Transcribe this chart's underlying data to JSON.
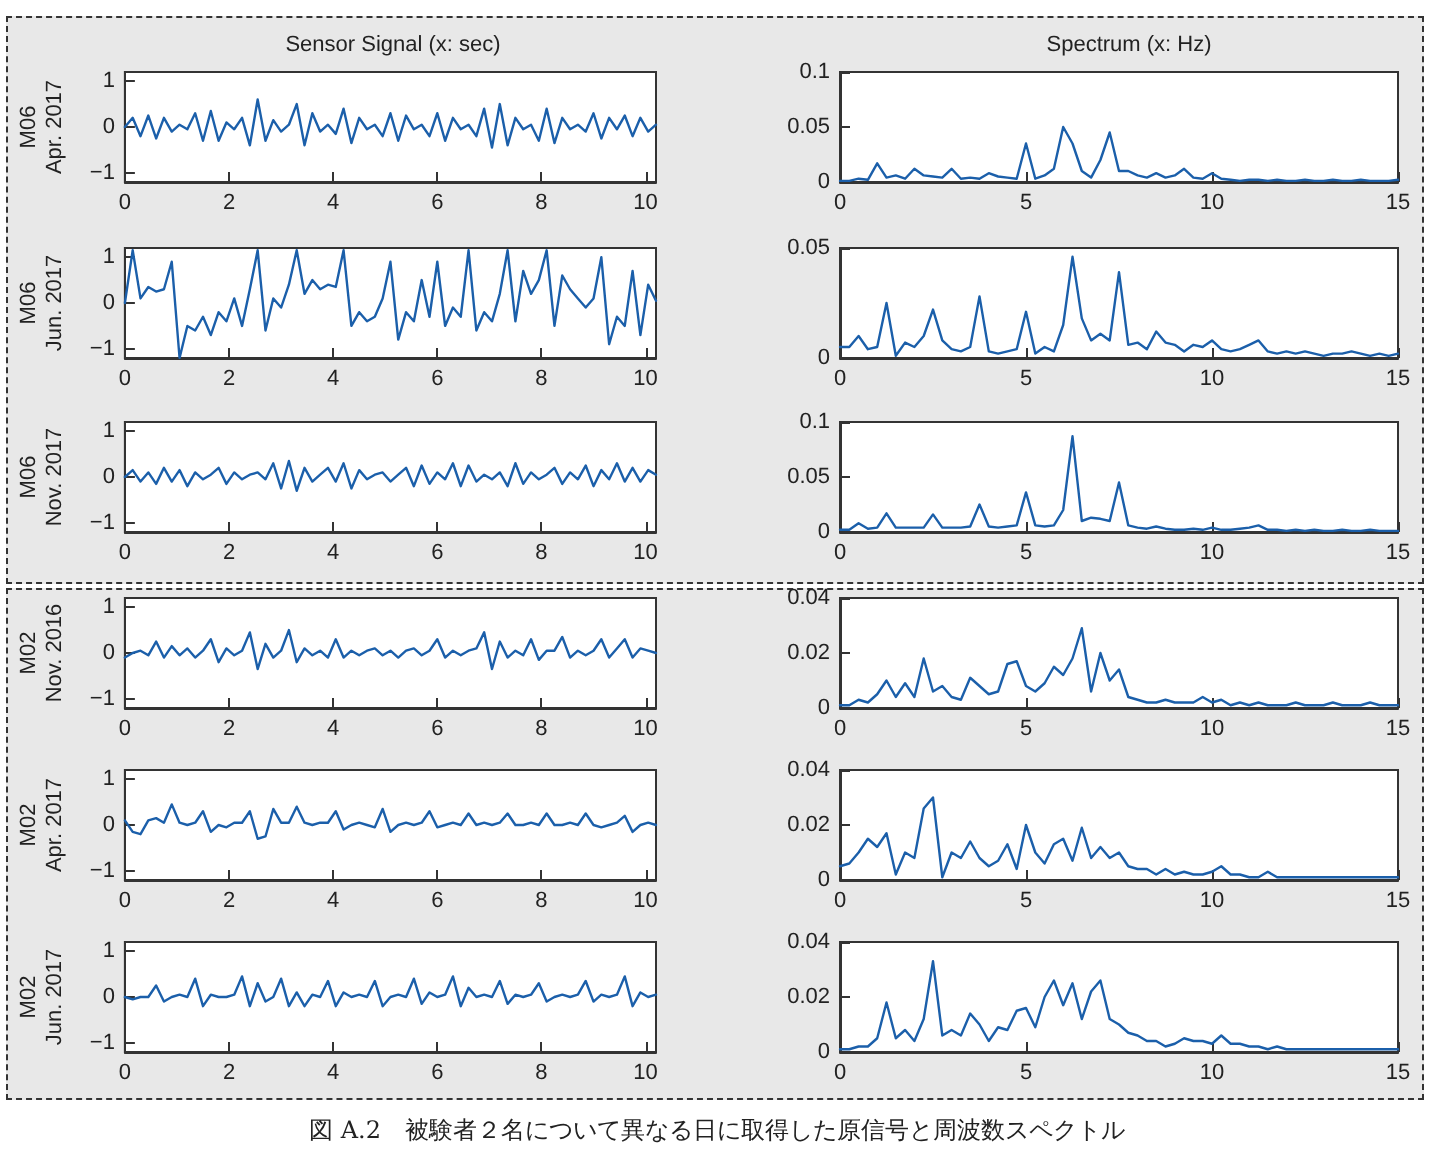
{
  "chart_data": [
    {
      "type": "line",
      "title": "Sensor Signal (x: sec)",
      "ylabel": "M06\nApr. 2017",
      "xlim": [
        0,
        10.2
      ],
      "ylim": [
        -1.2,
        1.2
      ],
      "xticks": [
        0,
        2,
        4,
        6,
        8,
        10
      ],
      "yticks": [
        -1,
        0,
        1
      ],
      "color": "#1b5faa",
      "x": [
        0,
        0.15,
        0.3,
        0.45,
        0.6,
        0.75,
        0.9,
        1.05,
        1.2,
        1.35,
        1.5,
        1.65,
        1.8,
        1.95,
        2.1,
        2.25,
        2.4,
        2.55,
        2.7,
        2.85,
        3,
        3.15,
        3.3,
        3.45,
        3.6,
        3.75,
        3.9,
        4.05,
        4.2,
        4.35,
        4.5,
        4.65,
        4.8,
        4.95,
        5.1,
        5.25,
        5.4,
        5.55,
        5.7,
        5.85,
        6,
        6.15,
        6.3,
        6.45,
        6.6,
        6.75,
        6.9,
        7.05,
        7.2,
        7.35,
        7.5,
        7.65,
        7.8,
        7.95,
        8.1,
        8.25,
        8.4,
        8.55,
        8.7,
        8.85,
        9,
        9.15,
        9.3,
        9.45,
        9.6,
        9.75,
        9.9,
        10.05,
        10.2
      ],
      "values": [
        0,
        0.2,
        -0.2,
        0.25,
        -0.25,
        0.2,
        -0.1,
        0.05,
        -0.05,
        0.3,
        -0.3,
        0.35,
        -0.3,
        0.1,
        -0.05,
        0.2,
        -0.4,
        0.6,
        -0.3,
        0.15,
        -0.1,
        0.05,
        0.5,
        -0.4,
        0.3,
        -0.1,
        0.05,
        -0.15,
        0.4,
        -0.35,
        0.2,
        -0.05,
        0.05,
        -0.2,
        0.3,
        -0.3,
        0.25,
        -0.05,
        0.05,
        -0.2,
        0.3,
        -0.3,
        0.2,
        -0.05,
        0.05,
        -0.2,
        0.4,
        -0.45,
        0.5,
        -0.4,
        0.2,
        -0.05,
        0.05,
        -0.3,
        0.4,
        -0.35,
        0.2,
        -0.05,
        0.05,
        -0.1,
        0.3,
        -0.25,
        0.2,
        -0.05,
        0.25,
        -0.2,
        0.2,
        -0.1,
        0.05
      ]
    },
    {
      "type": "line",
      "title": "Spectrum (x: Hz)",
      "xlim": [
        0,
        15
      ],
      "ylim": [
        0,
        0.1
      ],
      "xticks": [
        0,
        5,
        10,
        15
      ],
      "yticks": [
        0,
        0.05,
        0.1
      ],
      "color": "#1b5faa",
      "x": [
        0,
        0.25,
        0.5,
        0.75,
        1,
        1.25,
        1.5,
        1.75,
        2,
        2.25,
        2.5,
        2.75,
        3,
        3.25,
        3.5,
        3.75,
        4,
        4.25,
        4.5,
        4.75,
        5,
        5.25,
        5.5,
        5.75,
        6,
        6.25,
        6.5,
        6.75,
        7,
        7.25,
        7.5,
        7.75,
        8,
        8.25,
        8.5,
        8.75,
        9,
        9.25,
        9.5,
        9.75,
        10,
        10.25,
        10.5,
        10.75,
        11,
        11.25,
        11.5,
        11.75,
        12,
        12.25,
        12.5,
        12.75,
        13,
        13.25,
        13.5,
        13.75,
        14,
        14.25,
        14.5,
        14.75,
        15
      ],
      "values": [
        0.001,
        0.001,
        0.003,
        0.002,
        0.017,
        0.004,
        0.006,
        0.003,
        0.012,
        0.006,
        0.005,
        0.004,
        0.012,
        0.003,
        0.004,
        0.003,
        0.008,
        0.005,
        0.004,
        0.003,
        0.035,
        0.003,
        0.006,
        0.012,
        0.05,
        0.035,
        0.01,
        0.004,
        0.02,
        0.045,
        0.01,
        0.01,
        0.006,
        0.004,
        0.008,
        0.004,
        0.006,
        0.012,
        0.004,
        0.003,
        0.008,
        0.003,
        0.002,
        0.001,
        0.002,
        0.002,
        0.001,
        0.002,
        0.001,
        0.001,
        0.002,
        0.001,
        0.001,
        0.002,
        0.001,
        0.001,
        0.002,
        0.001,
        0.001,
        0.001,
        0.002
      ]
    },
    {
      "type": "line",
      "ylabel": "M06\nJun. 2017",
      "xlim": [
        0,
        10.2
      ],
      "ylim": [
        -1.2,
        1.2
      ],
      "xticks": [
        0,
        2,
        4,
        6,
        8,
        10
      ],
      "yticks": [
        -1,
        0,
        1
      ],
      "color": "#1b5faa",
      "x": [
        0,
        0.15,
        0.3,
        0.45,
        0.6,
        0.75,
        0.9,
        1.05,
        1.2,
        1.35,
        1.5,
        1.65,
        1.8,
        1.95,
        2.1,
        2.25,
        2.4,
        2.55,
        2.7,
        2.85,
        3,
        3.15,
        3.3,
        3.45,
        3.6,
        3.75,
        3.9,
        4.05,
        4.2,
        4.35,
        4.5,
        4.65,
        4.8,
        4.95,
        5.1,
        5.25,
        5.4,
        5.55,
        5.7,
        5.85,
        6,
        6.15,
        6.3,
        6.45,
        6.6,
        6.75,
        6.9,
        7.05,
        7.2,
        7.35,
        7.5,
        7.65,
        7.8,
        7.95,
        8.1,
        8.25,
        8.4,
        8.55,
        8.7,
        8.85,
        9,
        9.15,
        9.3,
        9.45,
        9.6,
        9.75,
        9.9,
        10.05,
        10.2
      ],
      "values": [
        0,
        1.15,
        0.1,
        0.35,
        0.25,
        0.3,
        0.9,
        -1.2,
        -0.5,
        -0.6,
        -0.3,
        -0.7,
        -0.2,
        -0.4,
        0.1,
        -0.5,
        0.3,
        1.15,
        -0.6,
        0.1,
        -0.1,
        0.4,
        1.15,
        0.2,
        0.5,
        0.3,
        0.4,
        0.35,
        1.15,
        -0.5,
        -0.2,
        -0.4,
        -0.3,
        0.1,
        0.9,
        -0.8,
        -0.2,
        -0.4,
        0.5,
        -0.3,
        0.9,
        -0.5,
        -0.1,
        -0.3,
        1.15,
        -0.6,
        -0.2,
        -0.4,
        0.2,
        1.15,
        -0.4,
        0.7,
        0.2,
        0.5,
        1.15,
        -0.5,
        0.6,
        0.3,
        0.1,
        -0.1,
        0.1,
        1.0,
        -0.9,
        -0.3,
        -0.5,
        0.7,
        -0.7,
        0.4,
        0.05
      ]
    },
    {
      "type": "line",
      "xlim": [
        0,
        15
      ],
      "ylim": [
        0,
        0.05
      ],
      "xticks": [
        0,
        5,
        10,
        15
      ],
      "yticks": [
        0,
        0.05
      ],
      "color": "#1b5faa",
      "x": [
        0,
        0.25,
        0.5,
        0.75,
        1,
        1.25,
        1.5,
        1.75,
        2,
        2.25,
        2.5,
        2.75,
        3,
        3.25,
        3.5,
        3.75,
        4,
        4.25,
        4.5,
        4.75,
        5,
        5.25,
        5.5,
        5.75,
        6,
        6.25,
        6.5,
        6.75,
        7,
        7.25,
        7.5,
        7.75,
        8,
        8.25,
        8.5,
        8.75,
        9,
        9.25,
        9.5,
        9.75,
        10,
        10.25,
        10.5,
        10.75,
        11,
        11.25,
        11.5,
        11.75,
        12,
        12.25,
        12.5,
        12.75,
        13,
        13.25,
        13.5,
        13.75,
        14,
        14.25,
        14.5,
        14.75,
        15
      ],
      "values": [
        0.005,
        0.005,
        0.01,
        0.004,
        0.005,
        0.025,
        0.001,
        0.007,
        0.005,
        0.01,
        0.022,
        0.008,
        0.004,
        0.003,
        0.005,
        0.028,
        0.003,
        0.002,
        0.003,
        0.004,
        0.021,
        0.002,
        0.005,
        0.003,
        0.015,
        0.046,
        0.018,
        0.008,
        0.011,
        0.008,
        0.039,
        0.006,
        0.007,
        0.004,
        0.012,
        0.007,
        0.006,
        0.003,
        0.006,
        0.005,
        0.008,
        0.004,
        0.003,
        0.004,
        0.006,
        0.008,
        0.003,
        0.002,
        0.003,
        0.002,
        0.003,
        0.002,
        0.001,
        0.002,
        0.002,
        0.003,
        0.002,
        0.001,
        0.002,
        0.001,
        0.002
      ]
    },
    {
      "type": "line",
      "ylabel": "M06\nNov. 2017",
      "xlim": [
        0,
        10.2
      ],
      "ylim": [
        -1.2,
        1.2
      ],
      "xticks": [
        0,
        2,
        4,
        6,
        8,
        10
      ],
      "yticks": [
        -1,
        0,
        1
      ],
      "color": "#1b5faa",
      "x": [
        0,
        0.15,
        0.3,
        0.45,
        0.6,
        0.75,
        0.9,
        1.05,
        1.2,
        1.35,
        1.5,
        1.65,
        1.8,
        1.95,
        2.1,
        2.25,
        2.4,
        2.55,
        2.7,
        2.85,
        3,
        3.15,
        3.3,
        3.45,
        3.6,
        3.75,
        3.9,
        4.05,
        4.2,
        4.35,
        4.5,
        4.65,
        4.8,
        4.95,
        5.1,
        5.25,
        5.4,
        5.55,
        5.7,
        5.85,
        6,
        6.15,
        6.3,
        6.45,
        6.6,
        6.75,
        6.9,
        7.05,
        7.2,
        7.35,
        7.5,
        7.65,
        7.8,
        7.95,
        8.1,
        8.25,
        8.4,
        8.55,
        8.7,
        8.85,
        9,
        9.15,
        9.3,
        9.45,
        9.6,
        9.75,
        9.9,
        10.05,
        10.2
      ],
      "values": [
        0,
        0.15,
        -0.1,
        0.1,
        -0.15,
        0.2,
        -0.1,
        0.15,
        -0.2,
        0.1,
        -0.05,
        0.05,
        0.2,
        -0.15,
        0.1,
        -0.05,
        0.05,
        0.1,
        -0.05,
        0.3,
        -0.25,
        0.35,
        -0.3,
        0.2,
        -0.1,
        0.05,
        0.2,
        -0.1,
        0.3,
        -0.25,
        0.15,
        -0.05,
        0.05,
        0.1,
        -0.1,
        0.05,
        0.2,
        -0.2,
        0.25,
        -0.15,
        0.1,
        -0.05,
        0.3,
        -0.2,
        0.25,
        -0.1,
        0.05,
        -0.05,
        0.1,
        -0.2,
        0.3,
        -0.15,
        0.1,
        -0.05,
        0.05,
        0.2,
        -0.15,
        0.1,
        -0.05,
        0.25,
        -0.2,
        0.15,
        -0.05,
        0.3,
        -0.1,
        0.2,
        -0.1,
        0.15,
        0.05
      ]
    },
    {
      "type": "line",
      "xlim": [
        0,
        15
      ],
      "ylim": [
        0,
        0.1
      ],
      "xticks": [
        0,
        5,
        10,
        15
      ],
      "yticks": [
        0,
        0.05,
        0.1
      ],
      "color": "#1b5faa",
      "x": [
        0,
        0.25,
        0.5,
        0.75,
        1,
        1.25,
        1.5,
        1.75,
        2,
        2.25,
        2.5,
        2.75,
        3,
        3.25,
        3.5,
        3.75,
        4,
        4.25,
        4.5,
        4.75,
        5,
        5.25,
        5.5,
        5.75,
        6,
        6.25,
        6.5,
        6.75,
        7,
        7.25,
        7.5,
        7.75,
        8,
        8.25,
        8.5,
        8.75,
        9,
        9.25,
        9.5,
        9.75,
        10,
        10.25,
        10.5,
        10.75,
        11,
        11.25,
        11.5,
        11.75,
        12,
        12.25,
        12.5,
        12.75,
        13,
        13.25,
        13.5,
        13.75,
        14,
        14.25,
        14.5,
        14.75,
        15
      ],
      "values": [
        0.002,
        0.002,
        0.008,
        0.003,
        0.004,
        0.017,
        0.004,
        0.004,
        0.004,
        0.004,
        0.016,
        0.004,
        0.004,
        0.004,
        0.005,
        0.025,
        0.005,
        0.004,
        0.005,
        0.006,
        0.036,
        0.006,
        0.005,
        0.006,
        0.02,
        0.087,
        0.01,
        0.013,
        0.012,
        0.01,
        0.045,
        0.006,
        0.004,
        0.003,
        0.005,
        0.003,
        0.002,
        0.002,
        0.003,
        0.002,
        0.004,
        0.002,
        0.002,
        0.003,
        0.004,
        0.006,
        0.002,
        0.002,
        0.001,
        0.002,
        0.001,
        0.002,
        0.001,
        0.001,
        0.002,
        0.001,
        0.001,
        0.002,
        0.001,
        0.001,
        0.001
      ]
    },
    {
      "type": "line",
      "ylabel": "M02\nNov. 2016",
      "xlim": [
        0,
        10.2
      ],
      "ylim": [
        -1.2,
        1.2
      ],
      "xticks": [
        0,
        2,
        4,
        6,
        8,
        10
      ],
      "yticks": [
        -1,
        0,
        1
      ],
      "color": "#1b5faa",
      "x": [
        0,
        0.15,
        0.3,
        0.45,
        0.6,
        0.75,
        0.9,
        1.05,
        1.2,
        1.35,
        1.5,
        1.65,
        1.8,
        1.95,
        2.1,
        2.25,
        2.4,
        2.55,
        2.7,
        2.85,
        3,
        3.15,
        3.3,
        3.45,
        3.6,
        3.75,
        3.9,
        4.05,
        4.2,
        4.35,
        4.5,
        4.65,
        4.8,
        4.95,
        5.1,
        5.25,
        5.4,
        5.55,
        5.7,
        5.85,
        6,
        6.15,
        6.3,
        6.45,
        6.6,
        6.75,
        6.9,
        7.05,
        7.2,
        7.35,
        7.5,
        7.65,
        7.8,
        7.95,
        8.1,
        8.25,
        8.4,
        8.55,
        8.7,
        8.85,
        9,
        9.15,
        9.3,
        9.45,
        9.6,
        9.75,
        9.9,
        10.05,
        10.2
      ],
      "values": [
        -0.1,
        0,
        0.05,
        -0.05,
        0.25,
        -0.1,
        0.15,
        -0.05,
        0.1,
        -0.1,
        0.05,
        0.3,
        -0.2,
        0.1,
        -0.05,
        0.05,
        0.45,
        -0.35,
        0.2,
        -0.1,
        0.05,
        0.5,
        -0.2,
        0.1,
        -0.05,
        0.05,
        -0.1,
        0.3,
        -0.1,
        0.05,
        -0.05,
        0.05,
        0.1,
        -0.05,
        0.05,
        -0.1,
        0.05,
        0.1,
        -0.05,
        0.05,
        0.3,
        -0.1,
        0.05,
        -0.05,
        0.05,
        0.1,
        0.45,
        -0.35,
        0.25,
        -0.1,
        0.05,
        -0.05,
        0.3,
        -0.15,
        0.05,
        0.05,
        0.35,
        -0.1,
        0.05,
        -0.05,
        0.05,
        0.3,
        -0.1,
        0.1,
        0.3,
        -0.1,
        0.1,
        0.05,
        0
      ]
    },
    {
      "type": "line",
      "xlim": [
        0,
        15
      ],
      "ylim": [
        0,
        0.04
      ],
      "xticks": [
        0,
        5,
        10,
        15
      ],
      "yticks": [
        0,
        0.02,
        0.04
      ],
      "color": "#1b5faa",
      "x": [
        0,
        0.25,
        0.5,
        0.75,
        1,
        1.25,
        1.5,
        1.75,
        2,
        2.25,
        2.5,
        2.75,
        3,
        3.25,
        3.5,
        3.75,
        4,
        4.25,
        4.5,
        4.75,
        5,
        5.25,
        5.5,
        5.75,
        6,
        6.25,
        6.5,
        6.75,
        7,
        7.25,
        7.5,
        7.75,
        8,
        8.25,
        8.5,
        8.75,
        9,
        9.25,
        9.5,
        9.75,
        10,
        10.25,
        10.5,
        10.75,
        11,
        11.25,
        11.5,
        11.75,
        12,
        12.25,
        12.5,
        12.75,
        13,
        13.25,
        13.5,
        13.75,
        14,
        14.25,
        14.5,
        14.75,
        15
      ],
      "values": [
        0.001,
        0.001,
        0.003,
        0.002,
        0.005,
        0.01,
        0.004,
        0.009,
        0.004,
        0.018,
        0.006,
        0.008,
        0.004,
        0.003,
        0.011,
        0.008,
        0.005,
        0.006,
        0.016,
        0.017,
        0.008,
        0.006,
        0.009,
        0.015,
        0.012,
        0.018,
        0.029,
        0.006,
        0.02,
        0.01,
        0.014,
        0.004,
        0.003,
        0.002,
        0.002,
        0.003,
        0.002,
        0.002,
        0.002,
        0.004,
        0.002,
        0.003,
        0.001,
        0.002,
        0.001,
        0.002,
        0.001,
        0.001,
        0.001,
        0.002,
        0.001,
        0.001,
        0.001,
        0.002,
        0.001,
        0.001,
        0.001,
        0.002,
        0.001,
        0.001,
        0.001
      ]
    },
    {
      "type": "line",
      "ylabel": "M02\nApr. 2017",
      "xlim": [
        0,
        10.2
      ],
      "ylim": [
        -1.2,
        1.2
      ],
      "xticks": [
        0,
        2,
        4,
        6,
        8,
        10
      ],
      "yticks": [
        -1,
        0,
        1
      ],
      "color": "#1b5faa",
      "x": [
        0,
        0.15,
        0.3,
        0.45,
        0.6,
        0.75,
        0.9,
        1.05,
        1.2,
        1.35,
        1.5,
        1.65,
        1.8,
        1.95,
        2.1,
        2.25,
        2.4,
        2.55,
        2.7,
        2.85,
        3,
        3.15,
        3.3,
        3.45,
        3.6,
        3.75,
        3.9,
        4.05,
        4.2,
        4.35,
        4.5,
        4.65,
        4.8,
        4.95,
        5.1,
        5.25,
        5.4,
        5.55,
        5.7,
        5.85,
        6,
        6.15,
        6.3,
        6.45,
        6.6,
        6.75,
        6.9,
        7.05,
        7.2,
        7.35,
        7.5,
        7.65,
        7.8,
        7.95,
        8.1,
        8.25,
        8.4,
        8.55,
        8.7,
        8.85,
        9,
        9.15,
        9.3,
        9.45,
        9.6,
        9.75,
        9.9,
        10.05,
        10.2
      ],
      "values": [
        0.1,
        -0.15,
        -0.2,
        0.1,
        0.15,
        0.05,
        0.45,
        0.05,
        0,
        0.05,
        0.3,
        -0.15,
        0,
        -0.05,
        0.05,
        0.05,
        0.3,
        -0.3,
        -0.25,
        0.35,
        0.05,
        0.05,
        0.4,
        0.05,
        0,
        0.05,
        0.05,
        0.3,
        -0.1,
        0,
        0.05,
        0,
        -0.05,
        0.35,
        -0.15,
        0,
        0.05,
        0,
        0.05,
        0.3,
        -0.05,
        0,
        0.05,
        0,
        0.25,
        0,
        0.05,
        0,
        0.05,
        0.25,
        0,
        0,
        0.05,
        0,
        0.25,
        0,
        0,
        0.05,
        0,
        0.25,
        0,
        -0.05,
        0,
        0.05,
        0.2,
        -0.15,
        0,
        0.05,
        0
      ]
    },
    {
      "type": "line",
      "xlim": [
        0,
        15
      ],
      "ylim": [
        0,
        0.04
      ],
      "xticks": [
        0,
        5,
        10,
        15
      ],
      "yticks": [
        0,
        0.02,
        0.04
      ],
      "color": "#1b5faa",
      "x": [
        0,
        0.25,
        0.5,
        0.75,
        1,
        1.25,
        1.5,
        1.75,
        2,
        2.25,
        2.5,
        2.75,
        3,
        3.25,
        3.5,
        3.75,
        4,
        4.25,
        4.5,
        4.75,
        5,
        5.25,
        5.5,
        5.75,
        6,
        6.25,
        6.5,
        6.75,
        7,
        7.25,
        7.5,
        7.75,
        8,
        8.25,
        8.5,
        8.75,
        9,
        9.25,
        9.5,
        9.75,
        10,
        10.25,
        10.5,
        10.75,
        11,
        11.25,
        11.5,
        11.75,
        12,
        12.25,
        12.5,
        12.75,
        13,
        13.25,
        13.5,
        13.75,
        14,
        14.25,
        14.5,
        14.75,
        15
      ],
      "values": [
        0.005,
        0.006,
        0.01,
        0.015,
        0.012,
        0.017,
        0.002,
        0.01,
        0.008,
        0.026,
        0.03,
        0.001,
        0.01,
        0.008,
        0.014,
        0.008,
        0.005,
        0.007,
        0.013,
        0.004,
        0.02,
        0.01,
        0.006,
        0.013,
        0.015,
        0.007,
        0.019,
        0.008,
        0.012,
        0.008,
        0.01,
        0.005,
        0.004,
        0.004,
        0.002,
        0.004,
        0.002,
        0.003,
        0.002,
        0.002,
        0.003,
        0.005,
        0.002,
        0.002,
        0.001,
        0.001,
        0.003,
        0.001,
        0.001,
        0.001,
        0.001,
        0.001,
        0.001,
        0.001,
        0.001,
        0.001,
        0.001,
        0.001,
        0.001,
        0.001,
        0.001
      ]
    },
    {
      "type": "line",
      "ylabel": "M02\nJun. 2017",
      "xlim": [
        0,
        10.2
      ],
      "ylim": [
        -1.2,
        1.2
      ],
      "xticks": [
        0,
        2,
        4,
        6,
        8,
        10
      ],
      "yticks": [
        -1,
        0,
        1
      ],
      "color": "#1b5faa",
      "x": [
        0,
        0.15,
        0.3,
        0.45,
        0.6,
        0.75,
        0.9,
        1.05,
        1.2,
        1.35,
        1.5,
        1.65,
        1.8,
        1.95,
        2.1,
        2.25,
        2.4,
        2.55,
        2.7,
        2.85,
        3,
        3.15,
        3.3,
        3.45,
        3.6,
        3.75,
        3.9,
        4.05,
        4.2,
        4.35,
        4.5,
        4.65,
        4.8,
        4.95,
        5.1,
        5.25,
        5.4,
        5.55,
        5.7,
        5.85,
        6,
        6.15,
        6.3,
        6.45,
        6.6,
        6.75,
        6.9,
        7.05,
        7.2,
        7.35,
        7.5,
        7.65,
        7.8,
        7.95,
        8.1,
        8.25,
        8.4,
        8.55,
        8.7,
        8.85,
        9,
        9.15,
        9.3,
        9.45,
        9.6,
        9.75,
        9.9,
        10.05,
        10.2
      ],
      "values": [
        0,
        -0.05,
        0,
        0,
        0.25,
        -0.1,
        0,
        0.05,
        0,
        0.4,
        -0.2,
        0.05,
        0,
        0,
        0.05,
        0.45,
        -0.2,
        0.3,
        -0.1,
        0,
        0.4,
        -0.2,
        0.1,
        -0.2,
        0.05,
        0,
        0.35,
        -0.2,
        0.1,
        0,
        0.05,
        0,
        0.35,
        -0.2,
        0,
        0.05,
        0,
        0.4,
        -0.15,
        0.1,
        0,
        0.05,
        0.45,
        -0.2,
        0.2,
        0,
        0.05,
        0,
        0.35,
        -0.15,
        0.05,
        0,
        0.05,
        0.3,
        -0.1,
        0,
        0.05,
        0,
        0.05,
        0.35,
        -0.1,
        0.05,
        0,
        0.05,
        0.45,
        -0.2,
        0.1,
        0,
        0.05
      ]
    },
    {
      "type": "line",
      "xlim": [
        0,
        15
      ],
      "ylim": [
        0,
        0.04
      ],
      "xticks": [
        0,
        5,
        10,
        15
      ],
      "yticks": [
        0,
        0.02,
        0.04
      ],
      "color": "#1b5faa",
      "annotations": [
        "図 A.2　被験者２名について異なる日に取得した原信号と周波数スペクトル"
      ],
      "x": [
        0,
        0.25,
        0.5,
        0.75,
        1,
        1.25,
        1.5,
        1.75,
        2,
        2.25,
        2.5,
        2.75,
        3,
        3.25,
        3.5,
        3.75,
        4,
        4.25,
        4.5,
        4.75,
        5,
        5.25,
        5.5,
        5.75,
        6,
        6.25,
        6.5,
        6.75,
        7,
        7.25,
        7.5,
        7.75,
        8,
        8.25,
        8.5,
        8.75,
        9,
        9.25,
        9.5,
        9.75,
        10,
        10.25,
        10.5,
        10.75,
        11,
        11.25,
        11.5,
        11.75,
        12,
        12.25,
        12.5,
        12.75,
        13,
        13.25,
        13.5,
        13.75,
        14,
        14.25,
        14.5,
        14.75,
        15
      ],
      "values": [
        0.001,
        0.001,
        0.002,
        0.002,
        0.005,
        0.018,
        0.005,
        0.008,
        0.004,
        0.012,
        0.033,
        0.006,
        0.008,
        0.006,
        0.014,
        0.01,
        0.004,
        0.009,
        0.008,
        0.015,
        0.016,
        0.009,
        0.02,
        0.026,
        0.017,
        0.025,
        0.012,
        0.022,
        0.026,
        0.012,
        0.01,
        0.007,
        0.006,
        0.004,
        0.004,
        0.002,
        0.003,
        0.005,
        0.004,
        0.004,
        0.003,
        0.006,
        0.003,
        0.003,
        0.002,
        0.002,
        0.001,
        0.002,
        0.001,
        0.001,
        0.001,
        0.001,
        0.001,
        0.001,
        0.001,
        0.001,
        0.001,
        0.001,
        0.001,
        0.001,
        0.001
      ]
    }
  ]
}
